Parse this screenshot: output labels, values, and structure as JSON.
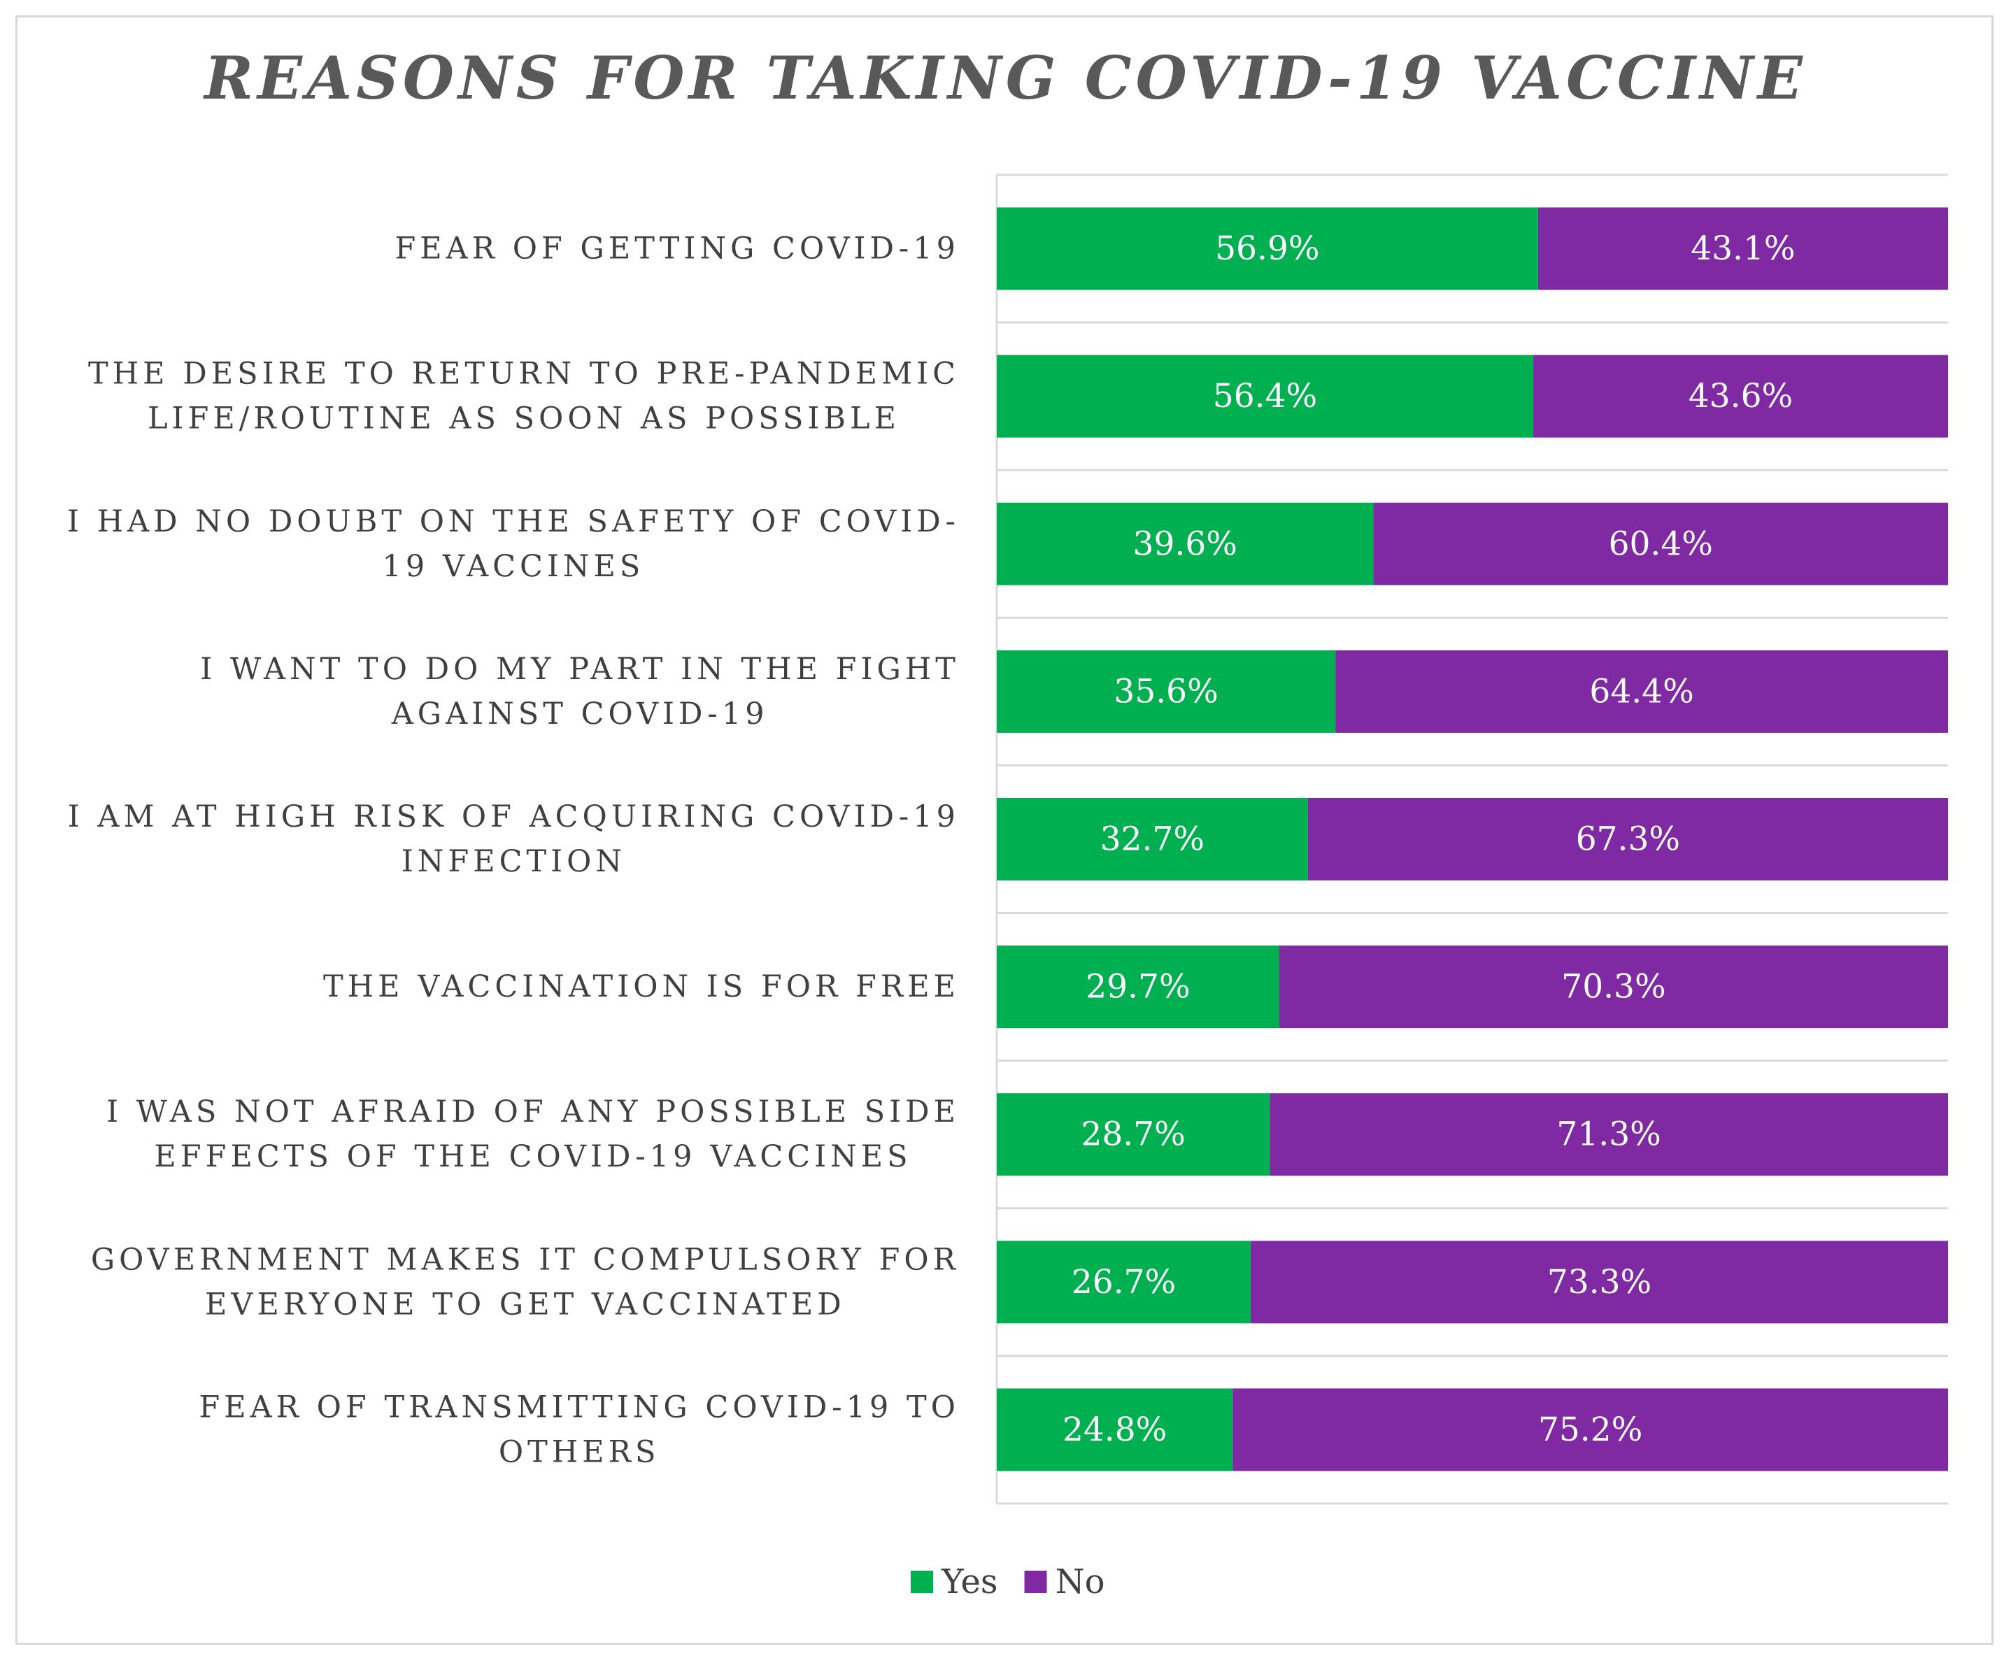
{
  "chart_data": {
    "type": "bar",
    "orientation": "horizontal",
    "stacked": "100%",
    "title": "REASONS FOR TAKING COVID-19 VACCINE",
    "categories": [
      [
        "FEAR OF GETTING COVID-19"
      ],
      [
        "THE DESIRE TO RETURN TO PRE-PANDEMIC",
        "LIFE/ROUTINE AS SOON AS POSSIBLE"
      ],
      [
        "I HAD NO DOUBT ON THE SAFETY OF COVID-",
        "19 VACCINES"
      ],
      [
        "I WANT TO DO MY PART IN THE FIGHT",
        "AGAINST COVID-19"
      ],
      [
        "I AM AT HIGH RISK OF ACQUIRING COVID-19",
        "INFECTION"
      ],
      [
        "THE VACCINATION IS FOR FREE"
      ],
      [
        "I WAS NOT AFRAID OF ANY POSSIBLE SIDE",
        "EFFECTS OF THE COVID-19 VACCINES"
      ],
      [
        "GOVERNMENT MAKES IT COMPULSORY FOR",
        "EVERYONE TO GET VACCINATED"
      ],
      [
        "FEAR OF TRANSMITTING COVID-19 TO",
        "OTHERS"
      ]
    ],
    "series": [
      {
        "name": "Yes",
        "color": "#00b050",
        "values": [
          56.9,
          56.4,
          39.6,
          35.6,
          32.7,
          29.7,
          28.7,
          26.7,
          24.8
        ],
        "labels": [
          "56.9%",
          "56.4%",
          "39.6%",
          "35.6%",
          "32.7%",
          "29.7%",
          "28.7%",
          "26.7%",
          "24.8%"
        ]
      },
      {
        "name": "No",
        "color": "#7f2aa3",
        "values": [
          43.1,
          43.6,
          60.4,
          64.4,
          67.3,
          70.3,
          71.3,
          73.3,
          75.2
        ],
        "labels": [
          "43.1%",
          "43.6%",
          "60.4%",
          "64.4%",
          "67.3%",
          "70.3%",
          "71.3%",
          "73.3%",
          "75.2%"
        ]
      }
    ],
    "xlim": [
      0,
      100
    ],
    "grid": true,
    "legend": "bottom"
  }
}
